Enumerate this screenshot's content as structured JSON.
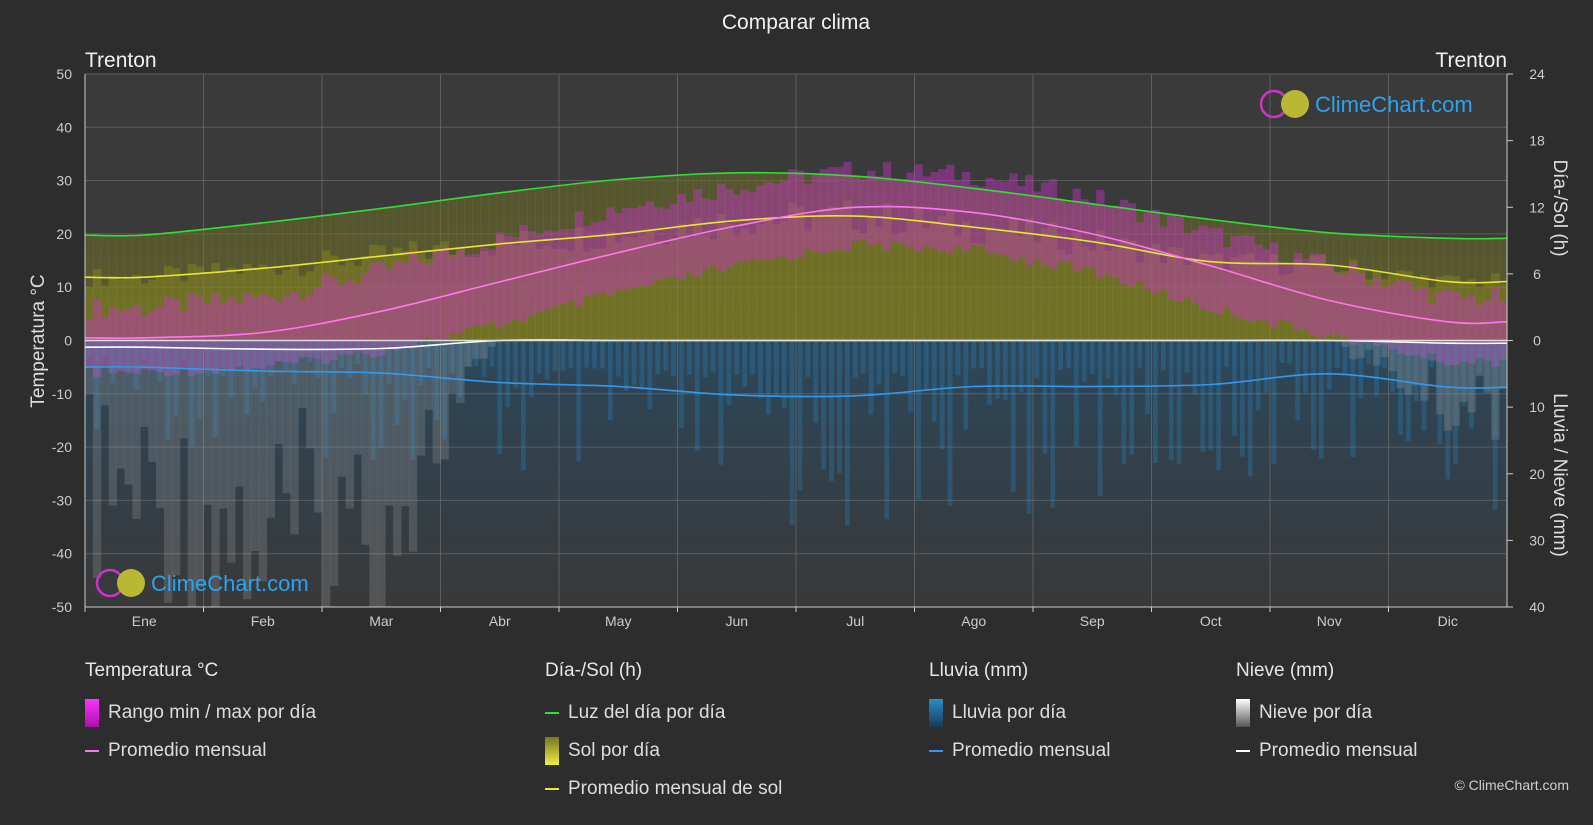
{
  "title": "Comparar clima",
  "location_left": "Trenton",
  "location_right": "Trenton",
  "watermark": "ClimeChart.com",
  "copyright": "© ClimeChart.com",
  "colors": {
    "background": "#2d2d2d",
    "daylight": "#33dd33",
    "sunshine_avg": "#e6e633",
    "sunshine_fill": "#8a8a22",
    "temp_avg": "#ff77ee",
    "temp_range": "#cc33cc",
    "rain": "#2a8ccc",
    "rain_avg": "#3399ee",
    "snow": "#9a9a9a",
    "snow_avg": "#ffffff",
    "watermark_text": "#2aa3f0"
  },
  "chart_data": {
    "type": "line",
    "title": "Comparar clima",
    "categories": [
      "Ene",
      "Feb",
      "Mar",
      "Abr",
      "May",
      "Jun",
      "Jul",
      "Ago",
      "Sep",
      "Oct",
      "Nov",
      "Dic"
    ],
    "y_left": {
      "label": "Temperatura °C",
      "min": -50,
      "max": 50,
      "ticks": [
        50,
        40,
        30,
        20,
        10,
        0,
        -10,
        -20,
        -30,
        -40,
        -50
      ]
    },
    "y_right_top": {
      "label": "Día-/Sol (h)",
      "min": 0,
      "max": 24,
      "ticks": [
        24,
        18,
        12,
        6,
        0
      ]
    },
    "y_right_bottom": {
      "label": "Lluvia / Nieve (mm)",
      "min": 0,
      "max": 40,
      "ticks": [
        10,
        20,
        30,
        40
      ]
    },
    "grid": true,
    "series": [
      {
        "name": "Luz del día por día",
        "axis": "hours",
        "values": [
          9.5,
          10.6,
          11.9,
          13.3,
          14.5,
          15.1,
          14.8,
          13.7,
          12.3,
          10.9,
          9.7,
          9.2
        ]
      },
      {
        "name": "Promedio mensual de sol",
        "axis": "hours",
        "values": [
          5.7,
          6.5,
          7.6,
          8.7,
          9.6,
          10.8,
          11.2,
          10.2,
          8.9,
          7.1,
          6.8,
          5.3
        ]
      },
      {
        "name": "Promedio mensual",
        "group": "Temperatura °C",
        "axis": "temp",
        "values": [
          0.5,
          1.5,
          5.5,
          11.0,
          16.5,
          21.5,
          25.0,
          24.0,
          20.0,
          14.0,
          7.5,
          3.5
        ]
      },
      {
        "name": "Rango min / max por día",
        "axis": "temp",
        "min": [
          -5,
          -4,
          -1,
          4,
          10,
          15,
          19,
          18,
          14,
          7,
          2,
          -3
        ],
        "max": [
          4,
          6,
          11,
          17,
          23,
          27,
          30,
          29,
          25,
          18,
          12,
          6
        ]
      },
      {
        "name": "Promedio mensual",
        "group": "Lluvia (mm)",
        "axis": "precip",
        "values": [
          4.0,
          4.6,
          4.9,
          6.3,
          6.9,
          8.2,
          8.3,
          6.9,
          6.9,
          6.6,
          5.0,
          7.0
        ]
      },
      {
        "name": "Promedio mensual",
        "group": "Nieve (mm)",
        "axis": "precip",
        "values": [
          1.0,
          1.3,
          1.2,
          0.0,
          0.0,
          0.0,
          0.0,
          0.0,
          0.0,
          0.0,
          0.0,
          0.4
        ]
      }
    ]
  },
  "legend": {
    "temp": {
      "title": "Temperatura °C",
      "range": "Rango min / max por día",
      "avg": "Promedio mensual"
    },
    "sun": {
      "title": "Día-/Sol (h)",
      "daylight": "Luz del día por día",
      "sun": "Sol por día",
      "sun_avg": "Promedio mensual de sol"
    },
    "rain": {
      "title": "Lluvia (mm)",
      "per_day": "Lluvia por día",
      "avg": "Promedio mensual"
    },
    "snow": {
      "title": "Nieve (mm)",
      "per_day": "Nieve por día",
      "avg": "Promedio mensual"
    }
  }
}
